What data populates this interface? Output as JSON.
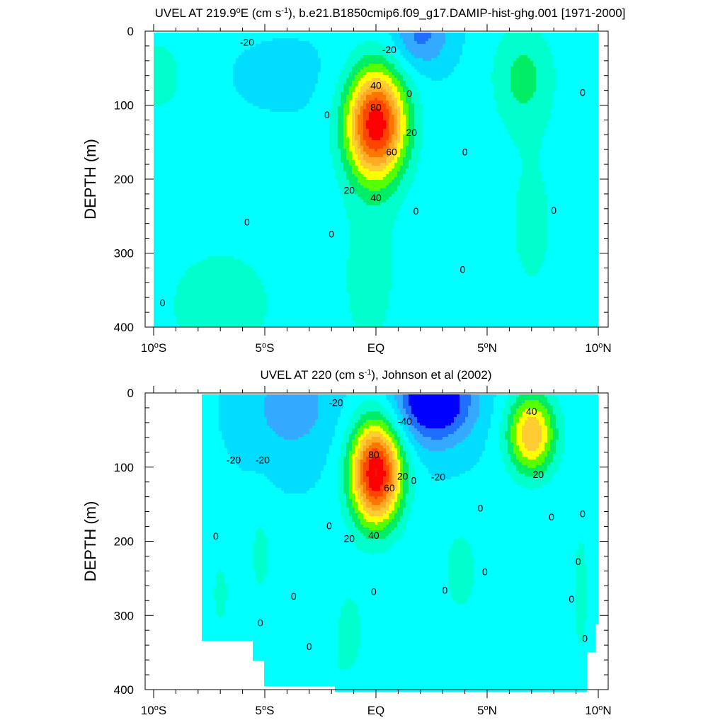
{
  "chart_data": [
    {
      "type": "contour",
      "title": "UVEL AT 219.9°E (cm s-1), b.e21.B1850cmip6.f09_g17.DAMIP-hist-ghg.001 [1971-2000]",
      "title_parts": [
        "UVEL AT 219.9",
        "o",
        "E (cm s",
        "-1",
        "), b.e21.B1850cmip6.f09_g17.DAMIP-hist-ghg.001 [1971-2000]"
      ],
      "ylabel": "DEPTH (m)",
      "xlabel": "",
      "x_range": [
        -10,
        10
      ],
      "y_range": [
        0,
        400
      ],
      "y_reversed": true,
      "x_ticks": [
        {
          "value": -10,
          "label": "10°S",
          "parts": [
            "10",
            "o",
            "S"
          ]
        },
        {
          "value": -5,
          "label": "5°S",
          "parts": [
            "5",
            "o",
            "S"
          ]
        },
        {
          "value": 0,
          "label": "EQ",
          "parts": [
            "EQ",
            "",
            ""
          ]
        },
        {
          "value": 5,
          "label": "5°N",
          "parts": [
            "5",
            "o",
            "N"
          ]
        },
        {
          "value": 10,
          "label": "10°N",
          "parts": [
            "10",
            "o",
            "N"
          ]
        }
      ],
      "y_ticks": [
        {
          "value": 0,
          "label": "0"
        },
        {
          "value": 100,
          "label": "100"
        },
        {
          "value": 200,
          "label": "200"
        },
        {
          "value": 300,
          "label": "300"
        },
        {
          "value": 400,
          "label": "400"
        }
      ],
      "contour_interval": 10,
      "grid": false,
      "colors": [
        "#0000ff",
        "#1e6eff",
        "#33aaff",
        "#00ddff",
        "#00ffff",
        "#00ffcc",
        "#00ee66",
        "#55ff00",
        "#ffff00",
        "#ffcc33",
        "#ffaa22",
        "#ff7700",
        "#ff4400",
        "#ff0000",
        "#ee1111"
      ],
      "contour_labels": [
        {
          "x": -5.8,
          "y": 15,
          "text": "-20"
        },
        {
          "x": 0.6,
          "y": 25,
          "text": "-20"
        },
        {
          "x": 0.0,
          "y": 73,
          "text": "40"
        },
        {
          "x": 0.0,
          "y": 103,
          "text": "80"
        },
        {
          "x": 1.6,
          "y": 137,
          "text": "20"
        },
        {
          "x": 0.7,
          "y": 163,
          "text": "60"
        },
        {
          "x": -2.2,
          "y": 113,
          "text": "0"
        },
        {
          "x": 1.5,
          "y": 84,
          "text": "0"
        },
        {
          "x": 0.0,
          "y": 225,
          "text": "40"
        },
        {
          "x": -1.2,
          "y": 215,
          "text": "20"
        },
        {
          "x": 1.8,
          "y": 243,
          "text": "0"
        },
        {
          "x": -5.8,
          "y": 258,
          "text": "0"
        },
        {
          "x": -2.0,
          "y": 274,
          "text": "0"
        },
        {
          "x": 4.0,
          "y": 163,
          "text": "0"
        },
        {
          "x": 3.9,
          "y": 322,
          "text": "0"
        },
        {
          "x": 9.3,
          "y": 83,
          "text": "0"
        },
        {
          "x": 8.0,
          "y": 242,
          "text": "0"
        },
        {
          "x": -9.6,
          "y": 367,
          "text": "0"
        }
      ],
      "features": [
        {
          "kind": "background",
          "value": 0
        },
        {
          "kind": "positive_core",
          "center": [
            0,
            125
          ],
          "max_value": 90
        },
        {
          "kind": "negative_surface",
          "center": [
            2.0,
            10
          ],
          "min_value": -30
        },
        {
          "kind": "positive_lobe",
          "center": [
            6.7,
            50
          ],
          "max_value": 10
        },
        {
          "kind": "positive_lobe",
          "center": [
            -9.5,
            60
          ],
          "max_value": 10
        },
        {
          "kind": "positive_deep",
          "center": [
            -7.5,
            360
          ],
          "max_value": 5
        },
        {
          "kind": "positive_deep",
          "center": [
            -0.3,
            330
          ],
          "max_value": 5
        },
        {
          "kind": "positive_deep",
          "center": [
            7.5,
            250
          ],
          "max_value": 5
        }
      ]
    },
    {
      "type": "contour",
      "title": "UVEL AT 220 (cm s-1), Johnson et al (2002)",
      "title_parts": [
        "UVEL AT 220 (cm s",
        "-1",
        "), Johnson et al (2002)"
      ],
      "ylabel": "DEPTH (m)",
      "xlabel": "",
      "x_range": [
        -10,
        10
      ],
      "y_range": [
        0,
        400
      ],
      "y_reversed": true,
      "data_x_range": [
        -7.8,
        10
      ],
      "x_ticks": [
        {
          "value": -10,
          "label": "10°S",
          "parts": [
            "10",
            "o",
            "S"
          ]
        },
        {
          "value": -5,
          "label": "5°S",
          "parts": [
            "5",
            "o",
            "S"
          ]
        },
        {
          "value": 0,
          "label": "EQ",
          "parts": [
            "EQ",
            "",
            ""
          ]
        },
        {
          "value": 5,
          "label": "5°N",
          "parts": [
            "5",
            "o",
            "N"
          ]
        },
        {
          "value": 10,
          "label": "10°N",
          "parts": [
            "10",
            "o",
            "N"
          ]
        }
      ],
      "y_ticks": [
        {
          "value": 0,
          "label": "0"
        },
        {
          "value": 100,
          "label": "100"
        },
        {
          "value": 200,
          "label": "200"
        },
        {
          "value": 300,
          "label": "300"
        },
        {
          "value": 400,
          "label": "400"
        }
      ],
      "contour_interval": 10,
      "grid": false,
      "colors": [
        "#0000ff",
        "#1e6eff",
        "#33aaff",
        "#00ddff",
        "#00ffff",
        "#00ffcc",
        "#00ee66",
        "#55ff00",
        "#ffff00",
        "#ffcc33",
        "#ffaa22",
        "#ff7700",
        "#ff4400",
        "#ff0000",
        "#ee1111"
      ],
      "contour_labels": [
        {
          "x": -1.8,
          "y": 13,
          "text": "-20"
        },
        {
          "x": 1.3,
          "y": 38,
          "text": "-40"
        },
        {
          "x": -6.4,
          "y": 90,
          "text": "-20"
        },
        {
          "x": -5.1,
          "y": 90,
          "text": "-20"
        },
        {
          "x": 2.8,
          "y": 113,
          "text": "-20"
        },
        {
          "x": 1.2,
          "y": 112,
          "text": "20"
        },
        {
          "x": 0.6,
          "y": 128,
          "text": "60"
        },
        {
          "x": 1.7,
          "y": 118,
          "text": "0"
        },
        {
          "x": -0.1,
          "y": 83,
          "text": "80"
        },
        {
          "x": -0.1,
          "y": 192,
          "text": "40"
        },
        {
          "x": -1.2,
          "y": 196,
          "text": "20"
        },
        {
          "x": -2.1,
          "y": 179,
          "text": "0"
        },
        {
          "x": -7.2,
          "y": 193,
          "text": "0"
        },
        {
          "x": -3.7,
          "y": 274,
          "text": "0"
        },
        {
          "x": -5.2,
          "y": 310,
          "text": "0"
        },
        {
          "x": -3.0,
          "y": 342,
          "text": "0"
        },
        {
          "x": -0.1,
          "y": 268,
          "text": "0"
        },
        {
          "x": 3.1,
          "y": 266,
          "text": "0"
        },
        {
          "x": 4.7,
          "y": 155,
          "text": "0"
        },
        {
          "x": 4.9,
          "y": 241,
          "text": "0"
        },
        {
          "x": 7.0,
          "y": 25,
          "text": "40"
        },
        {
          "x": 7.3,
          "y": 110,
          "text": "20"
        },
        {
          "x": 7.9,
          "y": 167,
          "text": "0"
        },
        {
          "x": 9.3,
          "y": 163,
          "text": "0"
        },
        {
          "x": 9.1,
          "y": 227,
          "text": "0"
        },
        {
          "x": 8.8,
          "y": 278,
          "text": "0"
        },
        {
          "x": 9.4,
          "y": 331,
          "text": "0"
        }
      ],
      "features": [
        {
          "kind": "background",
          "value": 0
        },
        {
          "kind": "positive_core",
          "center": [
            0,
            110
          ],
          "max_value": 90
        },
        {
          "kind": "negative_surface",
          "center": [
            2.5,
            15
          ],
          "min_value": -50
        },
        {
          "kind": "negative_surface",
          "center": [
            -3.8,
            15
          ],
          "min_value": -20
        },
        {
          "kind": "positive_lobe",
          "center": [
            7.0,
            50
          ],
          "max_value": 45
        },
        {
          "kind": "positive_deep",
          "center": [
            3.8,
            240
          ],
          "max_value": 10
        },
        {
          "kind": "positive_deep",
          "center": [
            -5.2,
            220
          ],
          "max_value": 5
        },
        {
          "kind": "positive_deep",
          "center": [
            -7.0,
            270
          ],
          "max_value": 5
        },
        {
          "kind": "positive_deep",
          "center": [
            -1.0,
            330
          ],
          "max_value": 5
        },
        {
          "kind": "positive_deep",
          "center": [
            9.2,
            270
          ],
          "max_value": 5
        }
      ]
    }
  ]
}
